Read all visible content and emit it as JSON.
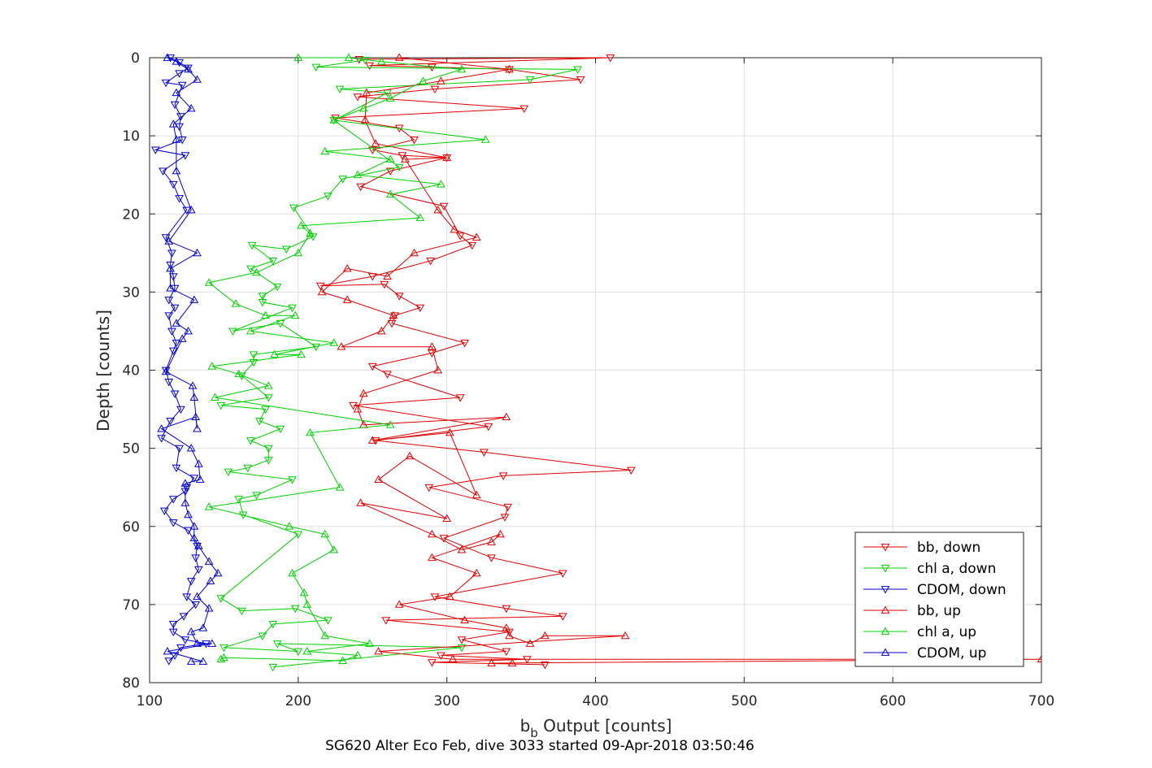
{
  "chart_data": {
    "type": "line",
    "title": "",
    "caption": "SG620 Alter Eco Feb, dive 3033 started 09-Apr-2018 03:50:46",
    "xlabel": "b_b Output [counts]",
    "xlabel_main": "b",
    "xlabel_sub": "b",
    "xlabel_rest": " Output [counts]",
    "ylabel": "Depth [counts]",
    "xlim": [
      100,
      700
    ],
    "ylim": [
      0,
      80
    ],
    "y_reversed": true,
    "xticks": [
      "100",
      "200",
      "300",
      "400",
      "500",
      "600",
      "700"
    ],
    "yticks": [
      "0",
      "10",
      "20",
      "30",
      "40",
      "50",
      "60",
      "70",
      "80"
    ],
    "grid": true,
    "legend_position": "bottom-right",
    "series": [
      {
        "name": "bb, down",
        "color": "#e00000",
        "marker": "triangle-down",
        "points": [
          [
            241,
            0.2
          ],
          [
            410,
            0
          ],
          [
            248,
            1
          ],
          [
            290,
            1.2
          ],
          [
            342,
            1.5
          ],
          [
            390,
            2.8
          ],
          [
            292,
            4
          ],
          [
            240,
            5
          ],
          [
            352,
            6.5
          ],
          [
            225,
            7.7
          ],
          [
            268,
            9
          ],
          [
            278,
            10.5
          ],
          [
            250,
            11.8
          ],
          [
            270,
            12.5
          ],
          [
            300,
            12.8
          ],
          [
            262,
            14.5
          ],
          [
            242,
            16.5
          ],
          [
            298,
            19
          ],
          [
            309,
            22.8
          ],
          [
            317,
            24
          ],
          [
            289,
            26
          ],
          [
            250,
            28
          ],
          [
            215,
            29.2
          ],
          [
            258,
            29
          ],
          [
            268,
            30.5
          ],
          [
            282,
            32
          ],
          [
            265,
            33
          ],
          [
            263,
            34
          ],
          [
            312,
            36.5
          ],
          [
            290,
            37.8
          ],
          [
            250,
            39.5
          ],
          [
            260,
            40.5
          ],
          [
            309,
            43.5
          ],
          [
            237,
            44.5
          ],
          [
            328,
            47.2
          ],
          [
            252,
            49
          ],
          [
            325,
            50.5
          ],
          [
            424,
            52.8
          ],
          [
            338,
            53.5
          ],
          [
            288,
            55
          ],
          [
            341,
            57.5
          ],
          [
            339,
            58.8
          ],
          [
            298,
            61.5
          ],
          [
            330,
            64
          ],
          [
            378,
            66
          ],
          [
            292,
            69
          ],
          [
            340,
            70.5
          ],
          [
            378,
            71.5
          ],
          [
            259,
            72
          ],
          [
            342,
            73.5
          ],
          [
            310,
            74.5
          ],
          [
            340,
            76
          ],
          [
            296,
            76.5
          ],
          [
            354,
            77
          ],
          [
            290,
            77.4
          ],
          [
            366,
            77.7
          ]
        ]
      },
      {
        "name": "chl a, down",
        "color": "#00d000",
        "marker": "triangle-down",
        "points": [
          [
            245,
            0.3
          ],
          [
            212,
            1.2
          ],
          [
            388,
            1.5
          ],
          [
            356,
            2.8
          ],
          [
            228,
            4
          ],
          [
            260,
            4.5
          ],
          [
            224,
            8
          ],
          [
            268,
            14
          ],
          [
            230,
            15.5
          ],
          [
            220,
            17.7
          ],
          [
            197,
            19.2
          ],
          [
            210,
            22.9
          ],
          [
            192,
            24.5
          ],
          [
            169,
            24
          ],
          [
            183,
            26
          ],
          [
            168,
            27
          ],
          [
            186,
            29.3
          ],
          [
            176,
            30.5
          ],
          [
            176,
            31.3
          ],
          [
            196,
            32
          ],
          [
            156,
            35
          ],
          [
            188,
            34
          ],
          [
            212,
            37
          ],
          [
            170,
            38
          ],
          [
            170,
            39
          ],
          [
            162,
            40.7
          ],
          [
            180,
            43.5
          ],
          [
            148,
            44.5
          ],
          [
            178,
            45
          ],
          [
            174,
            46.5
          ],
          [
            188,
            47.5
          ],
          [
            168,
            49
          ],
          [
            180,
            50
          ],
          [
            180,
            51.5
          ],
          [
            166,
            52.5
          ],
          [
            153,
            53
          ],
          [
            196,
            54
          ],
          [
            172,
            56
          ],
          [
            160,
            56.5
          ],
          [
            163,
            58.5
          ],
          [
            200,
            61
          ],
          [
            148,
            69.2
          ],
          [
            162,
            70.8
          ],
          [
            198,
            70.5
          ],
          [
            220,
            72
          ],
          [
            183,
            72.5
          ],
          [
            176,
            74
          ],
          [
            150,
            75.5
          ],
          [
            200,
            76
          ],
          [
            186,
            75
          ],
          [
            310,
            75.5
          ],
          [
            183,
            78
          ]
        ]
      },
      {
        "name": "CDOM, down",
        "color": "#0000d0",
        "marker": "triangle-down",
        "points": [
          [
            114,
            0
          ],
          [
            120,
            0.6
          ],
          [
            126,
            1.3
          ],
          [
            120,
            2
          ],
          [
            111,
            3.2
          ],
          [
            122,
            3.5
          ],
          [
            117,
            6
          ],
          [
            121,
            7.5
          ],
          [
            120,
            8.8
          ],
          [
            122,
            10.5
          ],
          [
            104,
            11.8
          ],
          [
            124,
            12.5
          ],
          [
            109,
            14.5
          ],
          [
            116,
            16.2
          ],
          [
            120,
            18
          ],
          [
            125,
            19.5
          ],
          [
            111,
            23
          ],
          [
            115,
            25
          ],
          [
            114,
            26.5
          ],
          [
            116,
            28
          ],
          [
            117,
            29.5
          ],
          [
            113,
            31
          ],
          [
            117,
            32
          ],
          [
            113,
            33
          ],
          [
            115,
            35
          ],
          [
            118,
            36.5
          ],
          [
            116,
            37.5
          ],
          [
            111,
            40
          ],
          [
            113,
            41.5
          ],
          [
            117,
            43
          ],
          [
            121,
            45
          ],
          [
            114,
            46.5
          ],
          [
            108,
            48.7
          ],
          [
            120,
            50
          ],
          [
            118,
            52.5
          ],
          [
            130,
            53.8
          ],
          [
            125,
            55
          ],
          [
            124,
            55.5
          ],
          [
            116,
            56.5
          ],
          [
            110,
            58
          ],
          [
            116,
            59.5
          ],
          [
            126,
            60.5
          ],
          [
            132,
            62.5
          ],
          [
            131,
            64
          ],
          [
            133,
            65.5
          ],
          [
            128,
            67
          ],
          [
            125,
            69
          ],
          [
            131,
            70
          ],
          [
            123,
            71.5
          ],
          [
            116,
            72.5
          ],
          [
            116,
            73.5
          ],
          [
            124,
            74.5
          ],
          [
            138,
            75
          ],
          [
            121,
            75.5
          ],
          [
            117,
            76.5
          ],
          [
            113,
            77.2
          ]
        ]
      },
      {
        "name": "bb, up",
        "color": "#e00000",
        "marker": "triangle-up",
        "points": [
          [
            268,
            0
          ],
          [
            342,
            1.5
          ],
          [
            296,
            3
          ],
          [
            246,
            4.5
          ],
          [
            245,
            8
          ],
          [
            252,
            11
          ],
          [
            300,
            12.8
          ],
          [
            272,
            13
          ],
          [
            294,
            19.5
          ],
          [
            305,
            22
          ],
          [
            320,
            23
          ],
          [
            278,
            25
          ],
          [
            260,
            28
          ],
          [
            233,
            27
          ],
          [
            216,
            30
          ],
          [
            233,
            31
          ],
          [
            264,
            33
          ],
          [
            256,
            35
          ],
          [
            229,
            37
          ],
          [
            290,
            37
          ],
          [
            294,
            40
          ],
          [
            244,
            43
          ],
          [
            240,
            45
          ],
          [
            244,
            47
          ],
          [
            340,
            46
          ],
          [
            250,
            49
          ],
          [
            302,
            48
          ],
          [
            320,
            56
          ],
          [
            275,
            51
          ],
          [
            254,
            54
          ],
          [
            300,
            59
          ],
          [
            242,
            57
          ],
          [
            290,
            61
          ],
          [
            310,
            63
          ],
          [
            330,
            62
          ],
          [
            336,
            61
          ],
          [
            290,
            64
          ],
          [
            320,
            66
          ],
          [
            302,
            69
          ],
          [
            268,
            70
          ],
          [
            312,
            72
          ],
          [
            340,
            73
          ],
          [
            342,
            74
          ],
          [
            356,
            75
          ],
          [
            366,
            74
          ],
          [
            420,
            74
          ],
          [
            254,
            76
          ],
          [
            304,
            77
          ],
          [
            700,
            77
          ],
          [
            330,
            77.5
          ],
          [
            344,
            77.5
          ]
        ]
      },
      {
        "name": "chl a, up",
        "color": "#00d000",
        "marker": "triangle-up",
        "points": [
          [
            200,
            0
          ],
          [
            234,
            0
          ],
          [
            256,
            0.5
          ],
          [
            310,
            1.5
          ],
          [
            284,
            3
          ],
          [
            262,
            5.2
          ],
          [
            244,
            6.5
          ],
          [
            224,
            8
          ],
          [
            326,
            10.5
          ],
          [
            218,
            12
          ],
          [
            262,
            13
          ],
          [
            240,
            15
          ],
          [
            296,
            16.2
          ],
          [
            262,
            17.5
          ],
          [
            282,
            20.5
          ],
          [
            202,
            21.5
          ],
          [
            208,
            22.5
          ],
          [
            200,
            25
          ],
          [
            172,
            27.5
          ],
          [
            140,
            28.8
          ],
          [
            158,
            31.5
          ],
          [
            178,
            33
          ],
          [
            198,
            33
          ],
          [
            168,
            35
          ],
          [
            224,
            36.5
          ],
          [
            184,
            38
          ],
          [
            202,
            38
          ],
          [
            142,
            39.5
          ],
          [
            160,
            40.5
          ],
          [
            180,
            42
          ],
          [
            144,
            43.5
          ],
          [
            262,
            47
          ],
          [
            208,
            48
          ],
          [
            228,
            55
          ],
          [
            140,
            57.5
          ],
          [
            194,
            60
          ],
          [
            218,
            61
          ],
          [
            224,
            63
          ],
          [
            196,
            66
          ],
          [
            204,
            68.5
          ],
          [
            206,
            70
          ],
          [
            218,
            74
          ],
          [
            248,
            75
          ],
          [
            206,
            76
          ],
          [
            240,
            76.5
          ],
          [
            230,
            77.2
          ],
          [
            150,
            76.8
          ],
          [
            148,
            77
          ]
        ]
      },
      {
        "name": "CDOM, up",
        "color": "#0000d0",
        "marker": "triangle-up",
        "points": [
          [
            112,
            0
          ],
          [
            118,
            0.5
          ],
          [
            126,
            1.5
          ],
          [
            132,
            2.8
          ],
          [
            118,
            4.5
          ],
          [
            128,
            6.5
          ],
          [
            116,
            8.5
          ],
          [
            118,
            10.5
          ],
          [
            118,
            14.5
          ],
          [
            128,
            19.5
          ],
          [
            113,
            23.5
          ],
          [
            132,
            25
          ],
          [
            114,
            27
          ],
          [
            114,
            29.5
          ],
          [
            130,
            31
          ],
          [
            118,
            34
          ],
          [
            126,
            35
          ],
          [
            122,
            36
          ],
          [
            111,
            40.2
          ],
          [
            129,
            42
          ],
          [
            130,
            43.5
          ],
          [
            132,
            47.5
          ],
          [
            131,
            46
          ],
          [
            108,
            47.5
          ],
          [
            128,
            50
          ],
          [
            133,
            52
          ],
          [
            134,
            54
          ],
          [
            124,
            54.5
          ],
          [
            124,
            57
          ],
          [
            126,
            58.5
          ],
          [
            130,
            60
          ],
          [
            130,
            61.5
          ],
          [
            133,
            62.5
          ],
          [
            140,
            64.5
          ],
          [
            146,
            66
          ],
          [
            141,
            67
          ],
          [
            132,
            69
          ],
          [
            140,
            70.5
          ],
          [
            136,
            73
          ],
          [
            128,
            73.5
          ],
          [
            132,
            75
          ],
          [
            142,
            75
          ],
          [
            112,
            76
          ],
          [
            136,
            77.3
          ],
          [
            128,
            77.3
          ]
        ]
      }
    ]
  }
}
